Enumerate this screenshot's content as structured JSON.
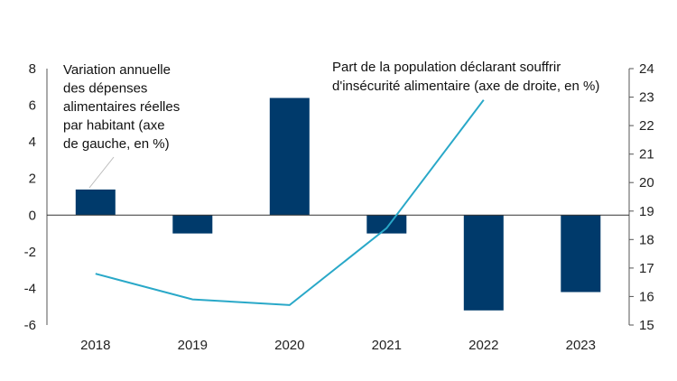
{
  "chart_data": {
    "type": "bar+line",
    "categories": [
      "2018",
      "2019",
      "2020",
      "2021",
      "2022",
      "2023"
    ],
    "series": [
      {
        "axis": "left",
        "kind": "bar",
        "values": [
          1.4,
          -1.0,
          6.4,
          -1.0,
          -5.2,
          -4.2
        ],
        "color": "#003a6b"
      },
      {
        "axis": "right",
        "kind": "line",
        "values": [
          16.8,
          15.9,
          15.7,
          18.4,
          22.9,
          null
        ],
        "color": "#29a8c8"
      }
    ],
    "yleft": {
      "min": -6,
      "max": 8,
      "ticks": [
        "-6",
        "-4",
        "-2",
        "0",
        "2",
        "4",
        "6",
        "8"
      ]
    },
    "yright": {
      "min": 15,
      "max": 24,
      "ticks": [
        "15",
        "16",
        "17",
        "18",
        "19",
        "20",
        "21",
        "22",
        "23",
        "24"
      ]
    },
    "annotations": {
      "bars_label": [
        "Variation annuelle",
        "des dépenses",
        "alimentaires réelles",
        "par habitant (axe",
        "de gauche, en %)"
      ],
      "line_label": [
        "Part de la population déclarant souffrir",
        "d'insécurité alimentaire (axe de droite, en %)"
      ]
    },
    "grid": false
  }
}
